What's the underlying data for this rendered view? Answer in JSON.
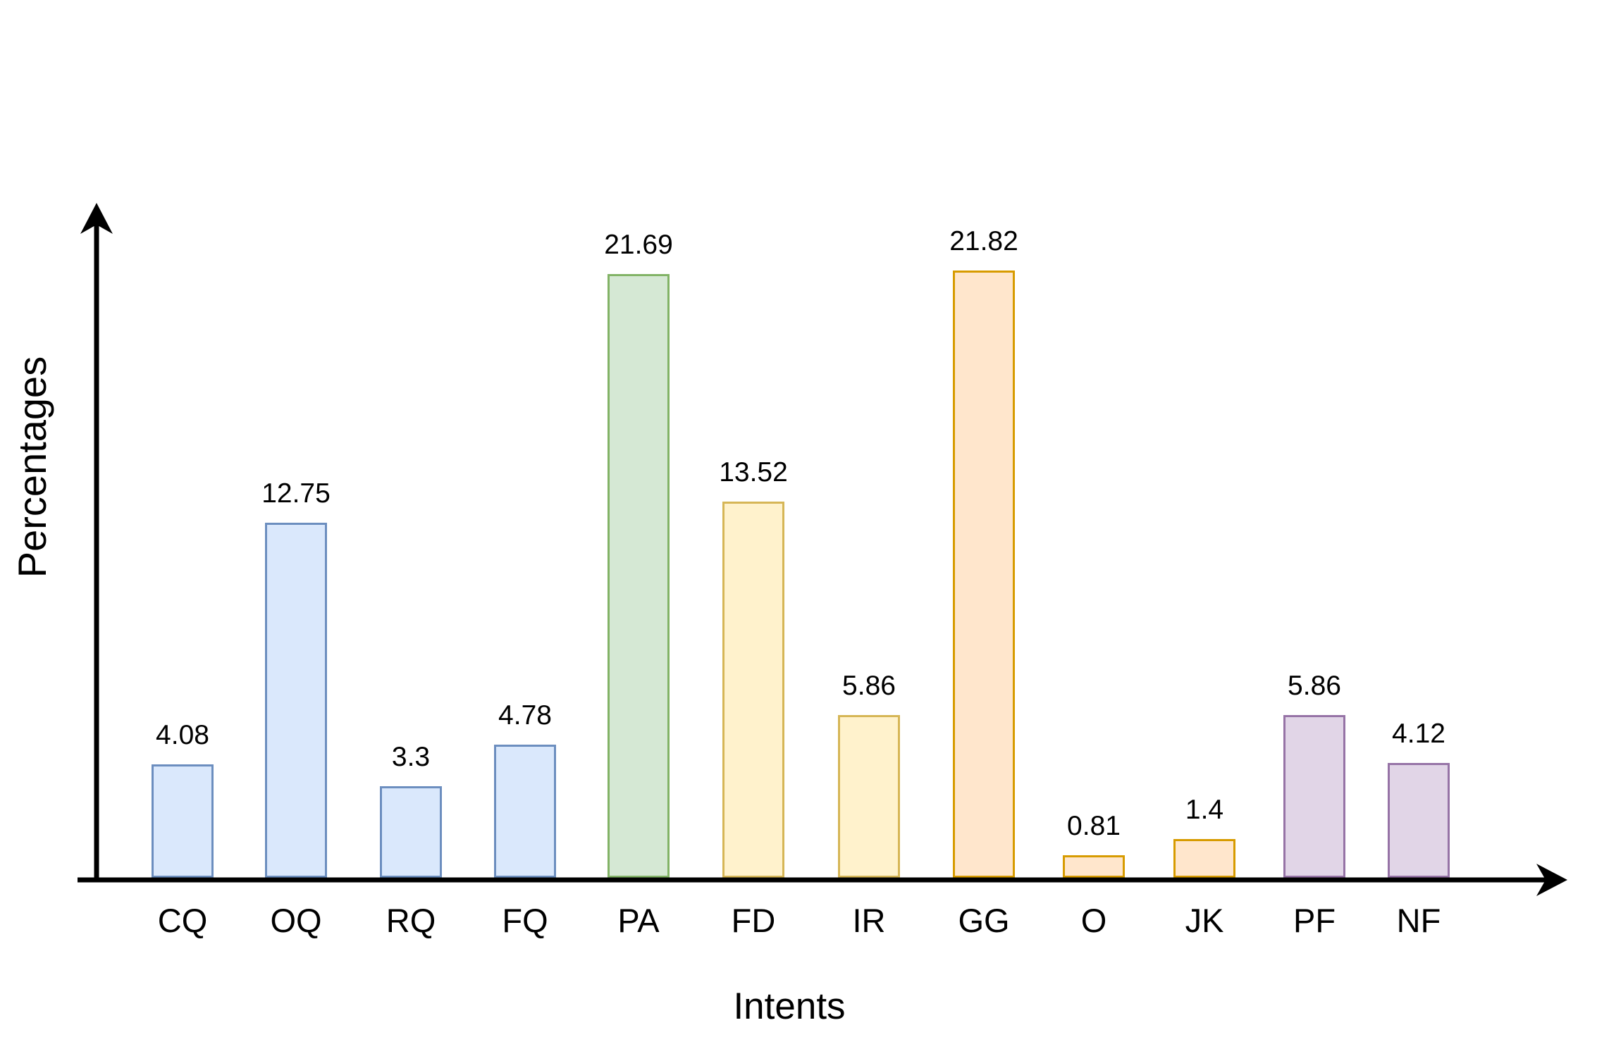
{
  "chart_data": {
    "type": "bar",
    "title": "",
    "xlabel": "Intents",
    "ylabel": "Percentages",
    "categories": [
      "CQ",
      "OQ",
      "RQ",
      "FQ",
      "PA",
      "FD",
      "IR",
      "GG",
      "O",
      "JK",
      "PF",
      "NF"
    ],
    "values": [
      4.08,
      12.75,
      3.3,
      4.78,
      21.69,
      13.52,
      5.86,
      21.82,
      0.81,
      1.4,
      5.86,
      4.12
    ],
    "value_labels": [
      "4.08",
      "12.75",
      "3.3",
      "4.78",
      "21.69",
      "13.52",
      "5.86",
      "21.82",
      "0.81",
      "1.4",
      "5.86",
      "4.12"
    ],
    "color_groups": [
      "blue",
      "blue",
      "blue",
      "blue",
      "green",
      "yellow",
      "yellow",
      "orange",
      "orange",
      "orange",
      "purple",
      "purple"
    ],
    "palette": {
      "blue": {
        "fill": "#dae8fc",
        "stroke": "#6c8ebf"
      },
      "green": {
        "fill": "#d5e8d4",
        "stroke": "#82b366"
      },
      "yellow": {
        "fill": "#fff2cc",
        "stroke": "#d6b656"
      },
      "orange": {
        "fill": "#ffe6cc",
        "stroke": "#d79b00"
      },
      "purple": {
        "fill": "#e1d5e7",
        "stroke": "#9673a6"
      }
    },
    "axis_color": "#000000",
    "background_color": "#ffffff",
    "ylim": [
      0,
      25
    ],
    "grid": false,
    "legend": false,
    "bar_value_labels_shown": true
  }
}
